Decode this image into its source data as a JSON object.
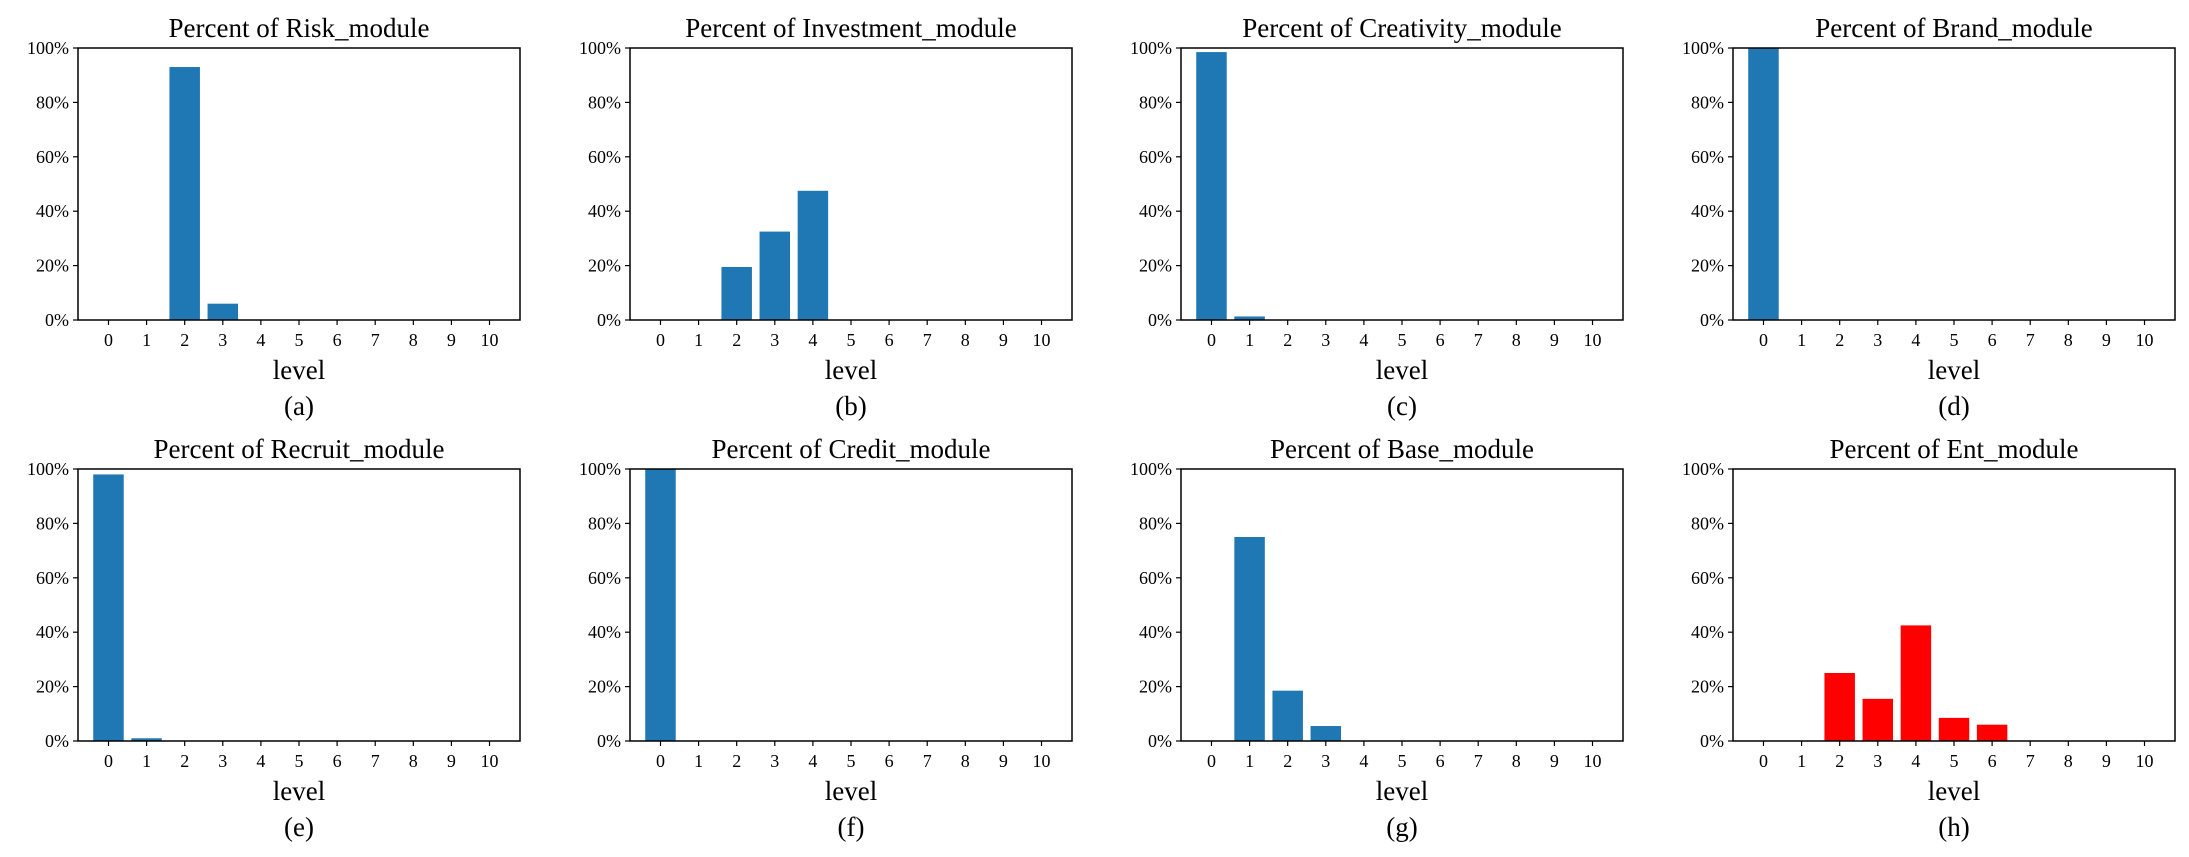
{
  "chart_data": [
    {
      "type": "bar",
      "title": "Percent of Risk_module",
      "xlabel": "level",
      "caption": "(a)",
      "categories": [
        "0",
        "1",
        "2",
        "3",
        "4",
        "5",
        "6",
        "7",
        "8",
        "9",
        "10"
      ],
      "values": [
        0,
        0,
        93,
        6,
        0,
        0,
        0,
        0,
        0,
        0,
        0
      ],
      "ylim": [
        0,
        100
      ],
      "yticks": [
        "0%",
        "20%",
        "40%",
        "60%",
        "80%",
        "100%"
      ],
      "color": "#1f77b4"
    },
    {
      "type": "bar",
      "title": "Percent of Investment_module",
      "xlabel": "level",
      "caption": "(b)",
      "categories": [
        "0",
        "1",
        "2",
        "3",
        "4",
        "5",
        "6",
        "7",
        "8",
        "9",
        "10"
      ],
      "values": [
        0,
        0,
        19.5,
        32.5,
        47.5,
        0,
        0,
        0,
        0,
        0,
        0
      ],
      "ylim": [
        0,
        100
      ],
      "yticks": [
        "0%",
        "20%",
        "40%",
        "60%",
        "80%",
        "100%"
      ],
      "color": "#1f77b4"
    },
    {
      "type": "bar",
      "title": "Percent of Creativity_module",
      "xlabel": "level",
      "caption": "(c)",
      "categories": [
        "0",
        "1",
        "2",
        "3",
        "4",
        "5",
        "6",
        "7",
        "8",
        "9",
        "10"
      ],
      "values": [
        98.5,
        1.3,
        0,
        0,
        0,
        0,
        0,
        0,
        0,
        0,
        0
      ],
      "ylim": [
        0,
        100
      ],
      "yticks": [
        "0%",
        "20%",
        "40%",
        "60%",
        "80%",
        "100%"
      ],
      "color": "#1f77b4"
    },
    {
      "type": "bar",
      "title": "Percent of Brand_module",
      "xlabel": "level",
      "caption": "(d)",
      "categories": [
        "0",
        "1",
        "2",
        "3",
        "4",
        "5",
        "6",
        "7",
        "8",
        "9",
        "10"
      ],
      "values": [
        100,
        0,
        0,
        0,
        0,
        0,
        0,
        0,
        0,
        0,
        0
      ],
      "ylim": [
        0,
        100
      ],
      "yticks": [
        "0%",
        "20%",
        "40%",
        "60%",
        "80%",
        "100%"
      ],
      "color": "#1f77b4"
    },
    {
      "type": "bar",
      "title": "Percent of Recruit_module",
      "xlabel": "level",
      "caption": "(e)",
      "categories": [
        "0",
        "1",
        "2",
        "3",
        "4",
        "5",
        "6",
        "7",
        "8",
        "9",
        "10"
      ],
      "values": [
        98,
        1,
        0,
        0,
        0,
        0,
        0,
        0,
        0,
        0,
        0
      ],
      "ylim": [
        0,
        100
      ],
      "yticks": [
        "0%",
        "20%",
        "40%",
        "60%",
        "80%",
        "100%"
      ],
      "color": "#1f77b4"
    },
    {
      "type": "bar",
      "title": "Percent of Credit_module",
      "xlabel": "level",
      "caption": "(f)",
      "categories": [
        "0",
        "1",
        "2",
        "3",
        "4",
        "5",
        "6",
        "7",
        "8",
        "9",
        "10"
      ],
      "values": [
        100,
        0,
        0,
        0,
        0,
        0,
        0,
        0,
        0,
        0,
        0
      ],
      "ylim": [
        0,
        100
      ],
      "yticks": [
        "0%",
        "20%",
        "40%",
        "60%",
        "80%",
        "100%"
      ],
      "color": "#1f77b4"
    },
    {
      "type": "bar",
      "title": "Percent of Base_module",
      "xlabel": "level",
      "caption": "(g)",
      "categories": [
        "0",
        "1",
        "2",
        "3",
        "4",
        "5",
        "6",
        "7",
        "8",
        "9",
        "10"
      ],
      "values": [
        0,
        75,
        18.5,
        5.5,
        0,
        0,
        0,
        0,
        0,
        0,
        0
      ],
      "ylim": [
        0,
        100
      ],
      "yticks": [
        "0%",
        "20%",
        "40%",
        "60%",
        "80%",
        "100%"
      ],
      "color": "#1f77b4"
    },
    {
      "type": "bar",
      "title": "Percent of Ent_module",
      "xlabel": "level",
      "caption": "(h)",
      "categories": [
        "0",
        "1",
        "2",
        "3",
        "4",
        "5",
        "6",
        "7",
        "8",
        "9",
        "10"
      ],
      "values": [
        0,
        0,
        25,
        15.5,
        42.5,
        8.5,
        6,
        0,
        0,
        0,
        0
      ],
      "ylim": [
        0,
        100
      ],
      "yticks": [
        "0%",
        "20%",
        "40%",
        "60%",
        "80%",
        "100%"
      ],
      "color": "#ff0000"
    }
  ]
}
